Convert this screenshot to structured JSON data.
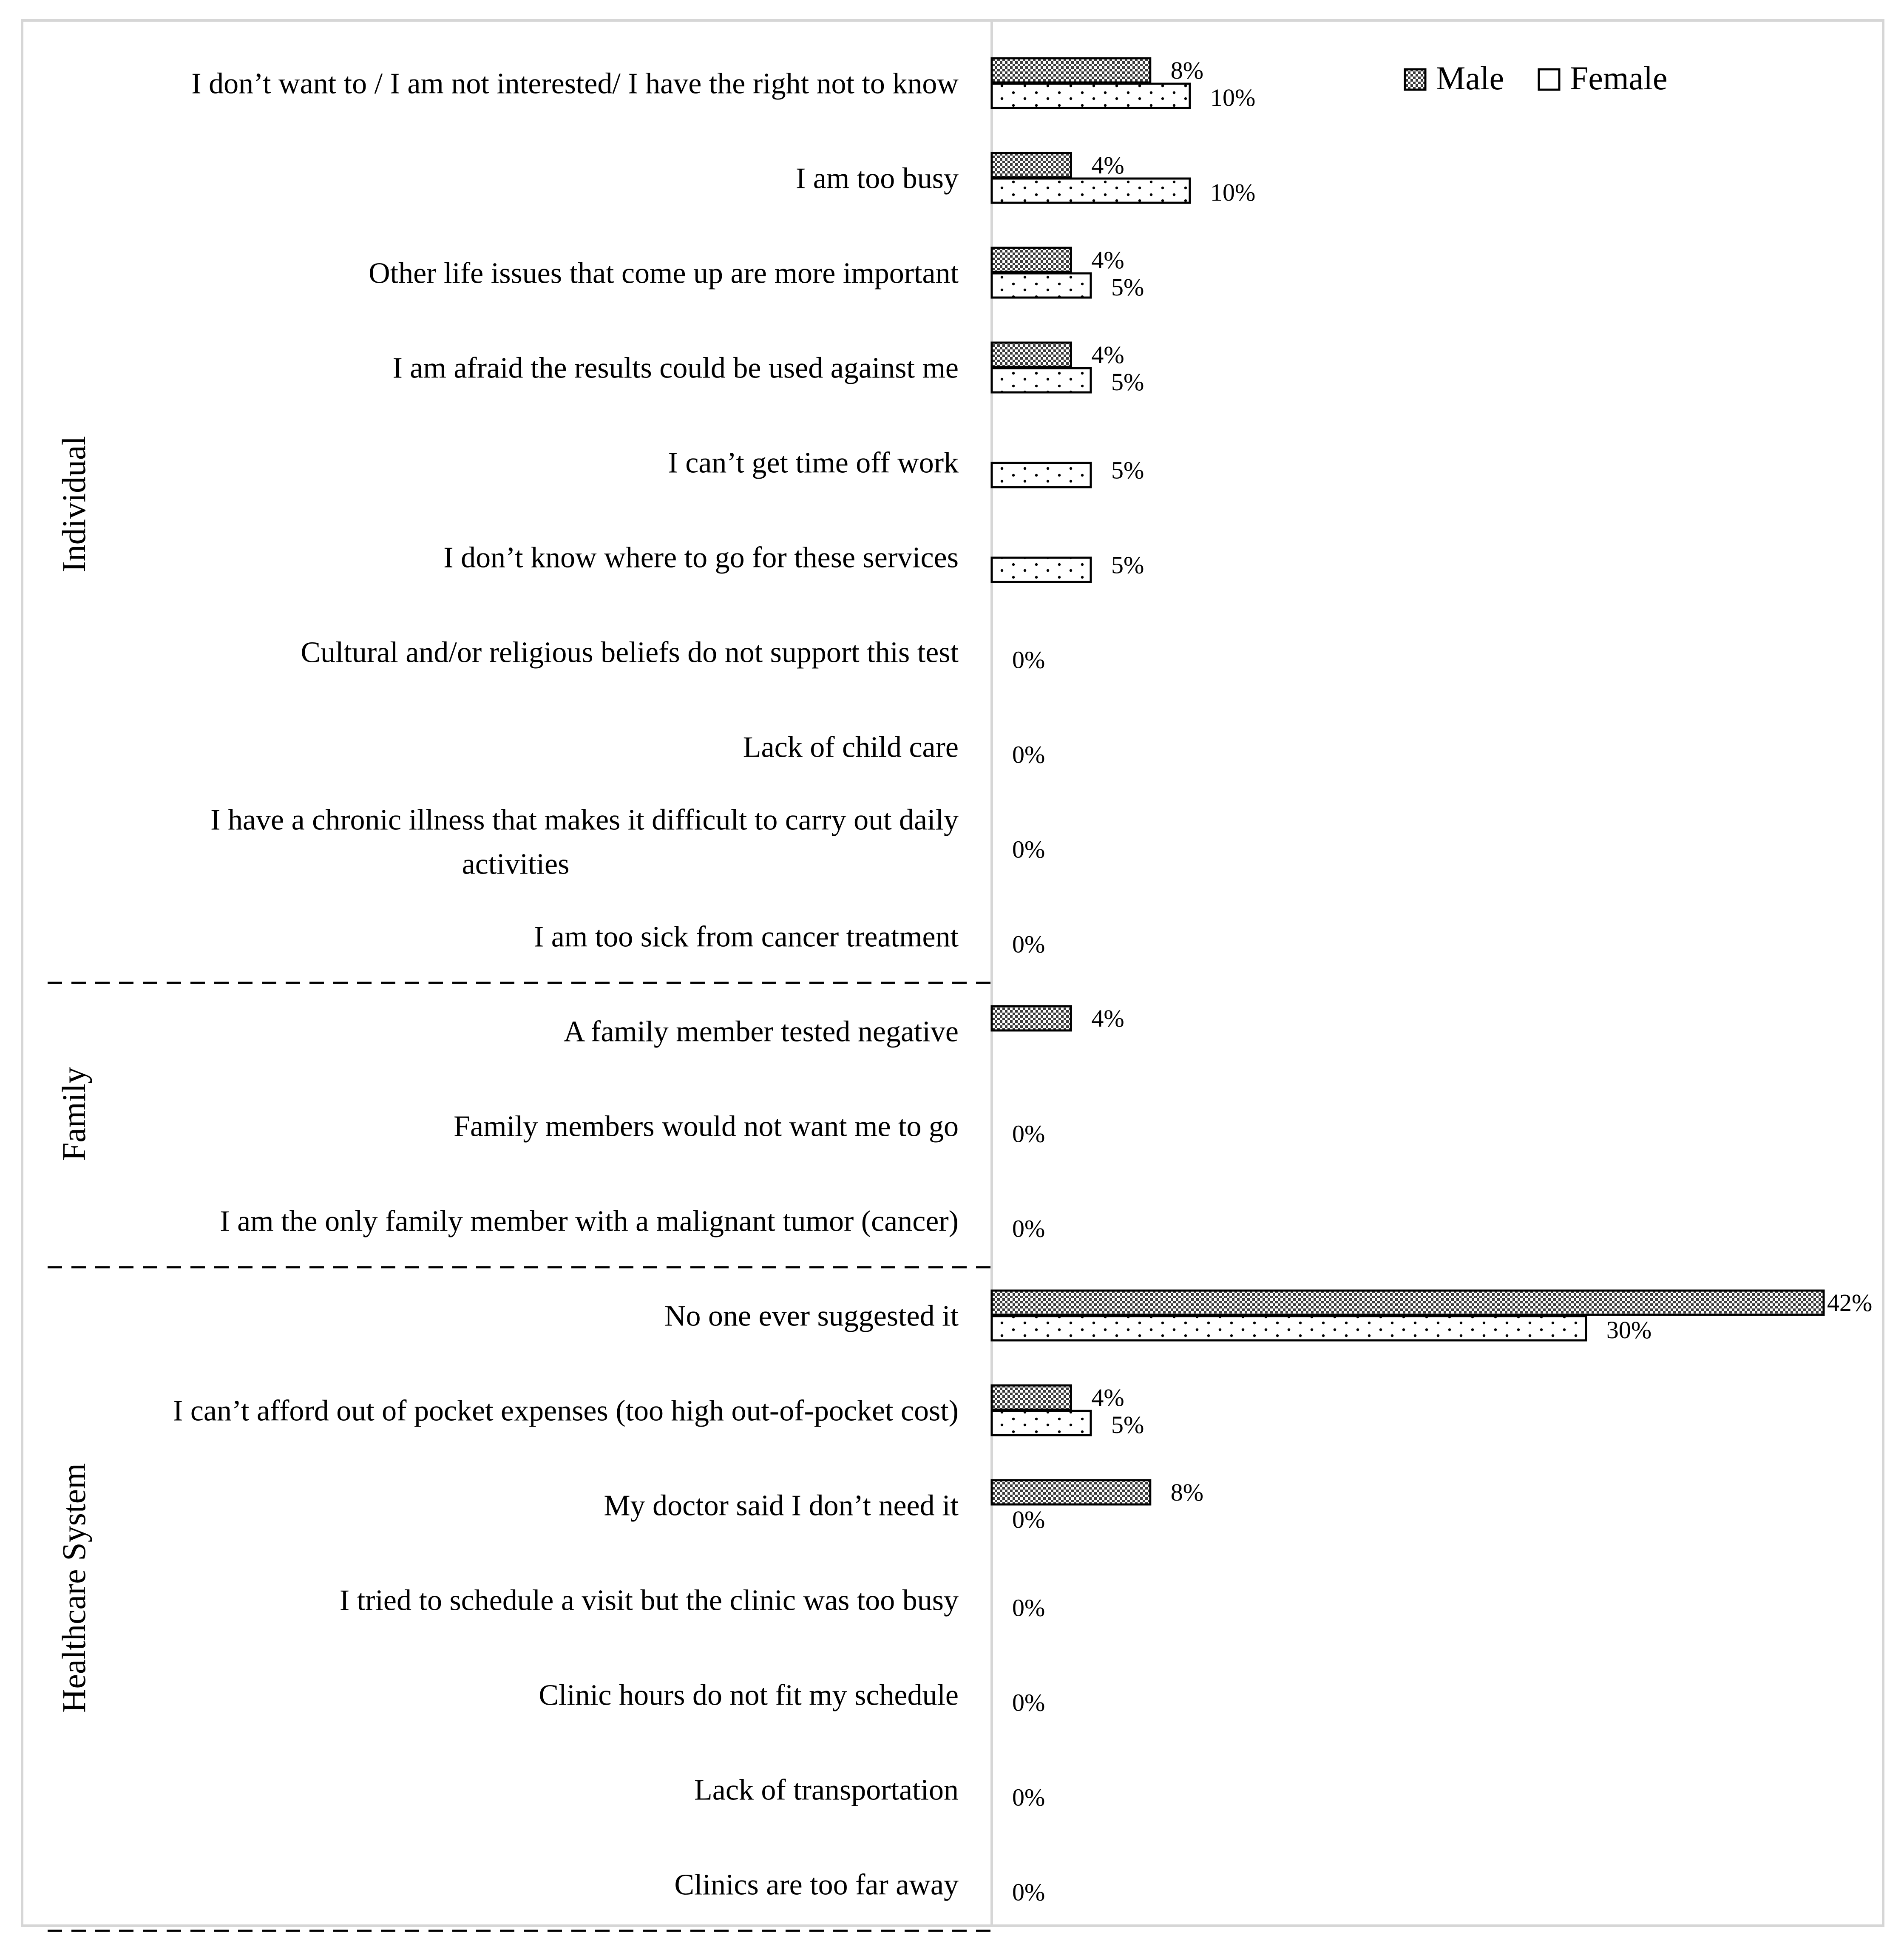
{
  "chart_data": {
    "type": "bar",
    "orientation": "horizontal",
    "title": "",
    "xlabel": "",
    "ylabel": "",
    "xlim": [
      0,
      42
    ],
    "grid": false,
    "legend_position": "top-right",
    "legend": [
      "Male",
      "Female"
    ],
    "series_styles": {
      "Male": "crosshatch",
      "Female": "dotted"
    },
    "groups": [
      {
        "name": "Individual",
        "start": 0,
        "end": 9
      },
      {
        "name": "Family",
        "start": 10,
        "end": 12
      },
      {
        "name": "Healthcare System",
        "start": 13,
        "end": 19
      }
    ],
    "categories": [
      [
        "I don’t want to / I am not interested/ I have the right not to know"
      ],
      [
        "I am too busy"
      ],
      [
        "Other life issues that come up are more important"
      ],
      [
        "I am afraid the results could be used against me"
      ],
      [
        "I can’t get time off work"
      ],
      [
        "I don’t know where to go for these services"
      ],
      [
        "Cultural and/or religious beliefs do not support this test"
      ],
      [
        "Lack of child care"
      ],
      [
        "I have a chronic illness that makes it difficult to carry out daily",
        "activities"
      ],
      [
        "I am too sick from cancer treatment"
      ],
      [
        "A family member tested negative"
      ],
      [
        "Family members would not want me to go"
      ],
      [
        "I am the only family member with a malignant tumor (cancer)"
      ],
      [
        "No one ever suggested it"
      ],
      [
        "I can’t afford out of pocket expenses (too high out-of-pocket cost)"
      ],
      [
        "My doctor said I don’t need it"
      ],
      [
        "I tried to schedule a visit but the clinic was too busy"
      ],
      [
        "Clinic hours do not fit my schedule"
      ],
      [
        "Lack of transportation"
      ],
      [
        "Clinics are too far away"
      ]
    ],
    "series": [
      {
        "name": "Male",
        "values": [
          8,
          4,
          4,
          4,
          null,
          null,
          null,
          null,
          null,
          null,
          4,
          null,
          null,
          42,
          4,
          8,
          null,
          null,
          null,
          null
        ],
        "labels": [
          "8%",
          "4%",
          "4%",
          "4%",
          "",
          "",
          "",
          "",
          "",
          "",
          "4%",
          "",
          "",
          "42%",
          "4%",
          "8%",
          "",
          "",
          "",
          ""
        ]
      },
      {
        "name": "Female",
        "values": [
          10,
          10,
          5,
          5,
          5,
          5,
          0,
          0,
          0,
          0,
          null,
          0,
          0,
          30,
          5,
          0,
          0,
          0,
          0,
          0
        ],
        "labels": [
          "10%",
          "10%",
          "5%",
          "5%",
          "5%",
          "5%",
          "0%",
          "0%",
          "0%",
          "0%",
          "",
          "0%",
          "0%",
          "30%",
          "5%",
          "0%",
          "0%",
          "0%",
          "0%",
          "0%"
        ]
      }
    ]
  }
}
